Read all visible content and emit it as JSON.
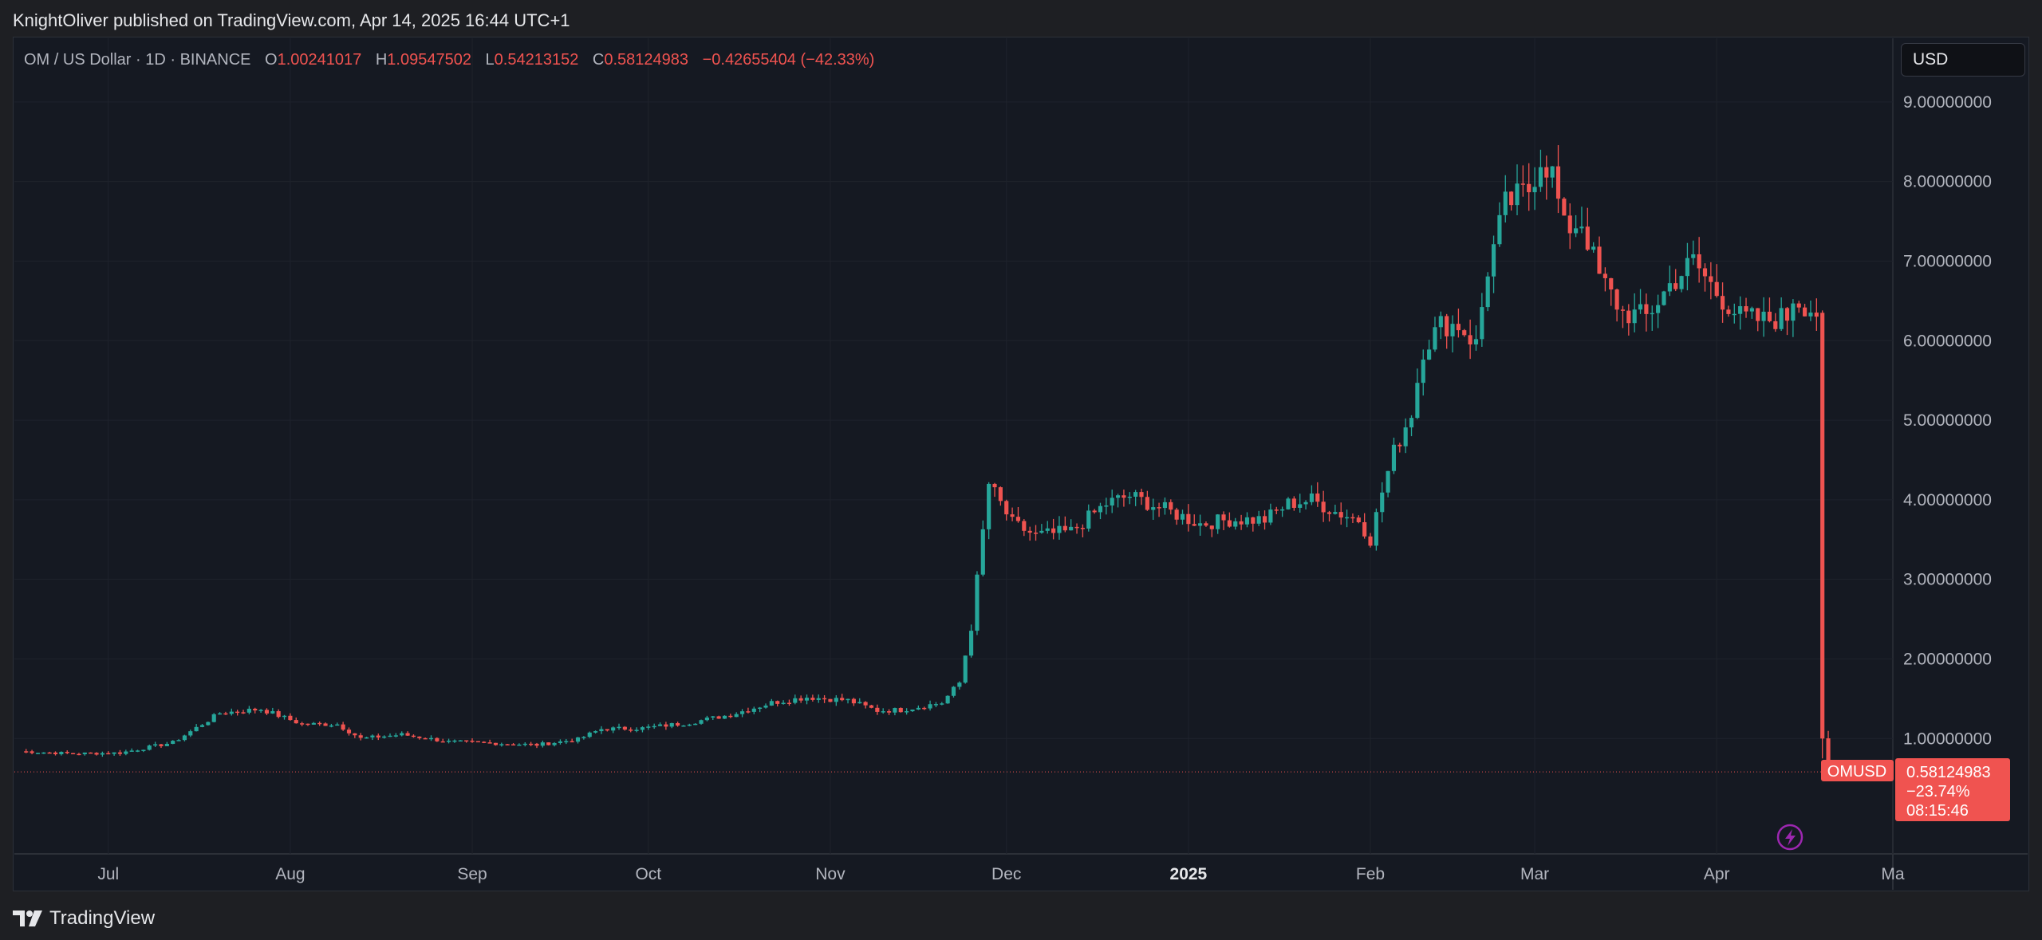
{
  "header": {
    "published": "KnightOliver published on TradingView.com, Apr 14, 2025 16:44 UTC+1"
  },
  "legend": {
    "symbol": "OM / US Dollar · 1D · BINANCE",
    "open_label": "O",
    "open": "1.00241017",
    "high_label": "H",
    "high": "1.09547502",
    "low_label": "L",
    "low": "0.54213152",
    "close_label": "C",
    "close": "0.58124983",
    "change": "−0.42655404 (−42.33%)"
  },
  "currency_button": "USD",
  "price_badge": {
    "symbol": "OMUSD",
    "price": "0.58124983",
    "change_pct": "−23.74%",
    "countdown": "08:15:46"
  },
  "footer": {
    "brand": "TradingView"
  },
  "colors": {
    "up": "#26a69a",
    "down": "#ef5350",
    "background": "#151922",
    "grid": "#1f232c",
    "axis_text": "#b2b5be",
    "badge": "#f05350"
  },
  "icons": [
    "lightning-icon",
    "tradingview-logo-icon"
  ],
  "chart_data": {
    "type": "candlestick",
    "title": "OM / US Dollar · 1D · BINANCE",
    "y_ticks": [
      "1.00000000",
      "2.00000000",
      "3.00000000",
      "4.00000000",
      "5.00000000",
      "6.00000000",
      "7.00000000",
      "8.00000000",
      "9.00000000"
    ],
    "ylim": [
      -0.45,
      9.8
    ],
    "x_ticks": [
      "Jul",
      "Aug",
      "Sep",
      "Oct",
      "Nov",
      "Dec",
      "2025",
      "Feb",
      "Mar",
      "Apr",
      "Ma"
    ],
    "x_tick_dates": [
      "2024-07-01",
      "2024-08-01",
      "2024-09-01",
      "2024-10-01",
      "2024-11-01",
      "2024-12-01",
      "2025-01-01",
      "2025-02-01",
      "2025-03-01",
      "2025-04-01",
      "2025-05-01"
    ],
    "x_range": [
      "2024-06-15",
      "2025-05-01"
    ],
    "last_price": 0.58124983,
    "grid": true,
    "anchors": [
      [
        "2024-06-16",
        0.84
      ],
      [
        "2024-06-25",
        0.81
      ],
      [
        "2024-07-03",
        0.82
      ],
      [
        "2024-07-12",
        0.95
      ],
      [
        "2024-07-20",
        1.32
      ],
      [
        "2024-07-27",
        1.37
      ],
      [
        "2024-08-03",
        1.18
      ],
      [
        "2024-08-09",
        1.18
      ],
      [
        "2024-08-13",
        1.0
      ],
      [
        "2024-08-20",
        1.05
      ],
      [
        "2024-08-28",
        0.96
      ],
      [
        "2024-09-05",
        0.94
      ],
      [
        "2024-09-12",
        0.92
      ],
      [
        "2024-09-19",
        0.99
      ],
      [
        "2024-09-23",
        1.12
      ],
      [
        "2024-09-30",
        1.13
      ],
      [
        "2024-10-08",
        1.2
      ],
      [
        "2024-10-15",
        1.3
      ],
      [
        "2024-10-22",
        1.45
      ],
      [
        "2024-10-28",
        1.52
      ],
      [
        "2024-11-04",
        1.48
      ],
      [
        "2024-11-09",
        1.35
      ],
      [
        "2024-11-13",
        1.36
      ],
      [
        "2024-11-20",
        1.45
      ],
      [
        "2024-11-23",
        1.7
      ],
      [
        "2024-11-25",
        2.4
      ],
      [
        "2024-11-27",
        3.6
      ],
      [
        "2024-11-28",
        4.2
      ],
      [
        "2024-12-02",
        3.7
      ],
      [
        "2024-12-06",
        3.55
      ],
      [
        "2024-12-12",
        3.6
      ],
      [
        "2024-12-18",
        3.95
      ],
      [
        "2024-12-22",
        4.05
      ],
      [
        "2025-01-03",
        3.7
      ],
      [
        "2025-01-08",
        3.75
      ],
      [
        "2025-01-14",
        3.75
      ],
      [
        "2025-01-18",
        3.95
      ],
      [
        "2025-01-22",
        4.0
      ],
      [
        "2025-01-26",
        3.85
      ],
      [
        "2025-01-30",
        3.75
      ],
      [
        "2025-02-01",
        3.5
      ],
      [
        "2025-02-03",
        4.1
      ],
      [
        "2025-02-05",
        4.6
      ],
      [
        "2025-02-08",
        5.1
      ],
      [
        "2025-02-10",
        5.9
      ],
      [
        "2025-02-13",
        6.2
      ],
      [
        "2025-02-16",
        6.2
      ],
      [
        "2025-02-19",
        5.95
      ],
      [
        "2025-02-21",
        6.9
      ],
      [
        "2025-02-24",
        7.7
      ],
      [
        "2025-02-28",
        7.9
      ],
      [
        "2025-03-02",
        8.3
      ],
      [
        "2025-03-04",
        8.1
      ],
      [
        "2025-03-06",
        7.4
      ],
      [
        "2025-03-09",
        7.5
      ],
      [
        "2025-03-12",
        6.8
      ],
      [
        "2025-03-16",
        6.35
      ],
      [
        "2025-03-20",
        6.3
      ],
      [
        "2025-03-24",
        6.7
      ],
      [
        "2025-03-28",
        7.0
      ],
      [
        "2025-04-01",
        6.6
      ],
      [
        "2025-04-05",
        6.3
      ],
      [
        "2025-04-09",
        6.25
      ],
      [
        "2025-04-13",
        6.3
      ],
      [
        "2025-04-14",
        6.55
      ],
      [
        "2025-04-18",
        6.35
      ]
    ],
    "series": [
      {
        "name": "crash_day_1",
        "date": "2025-04-19",
        "open": 6.35,
        "high": 6.38,
        "low": 0.75,
        "close": 1.0
      },
      {
        "name": "crash_day_2",
        "date": "2025-04-20",
        "open": 1.0024,
        "high": 1.0955,
        "low": 0.5421,
        "close": 0.5812
      }
    ]
  }
}
